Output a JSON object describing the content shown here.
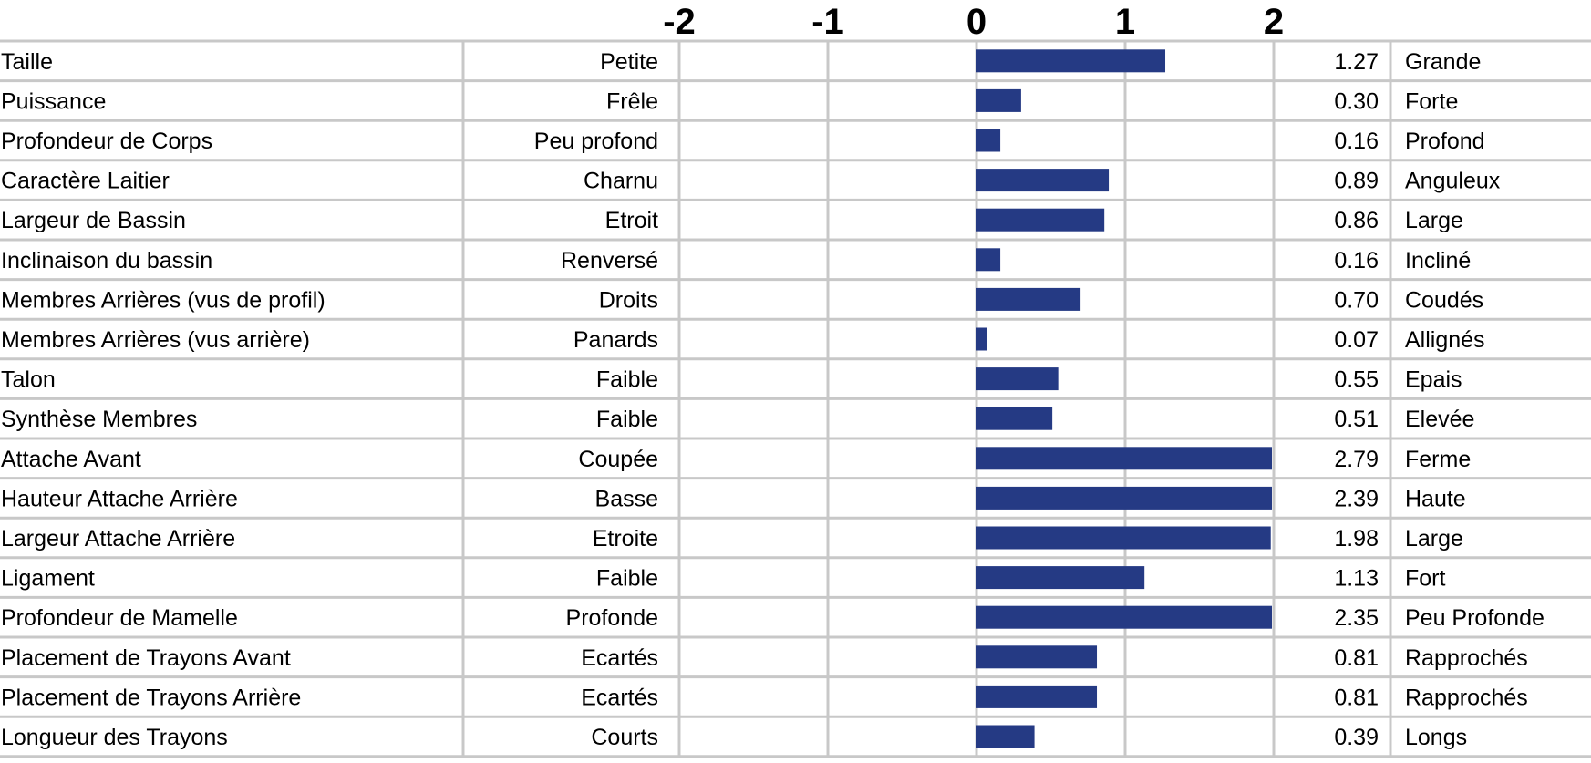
{
  "chart_data": {
    "type": "bar",
    "orientation": "horizontal",
    "xlim": [
      -2,
      2
    ],
    "ticks": [
      "-2",
      "-1",
      "0",
      "1",
      "2"
    ],
    "grid": true,
    "bar_color": "#253A84",
    "rows": [
      {
        "trait": "Taille",
        "low": "Petite",
        "value": 1.27,
        "value_label": "1.27",
        "high": "Grande"
      },
      {
        "trait": "Puissance",
        "low": "Frêle",
        "value": 0.3,
        "value_label": "0.30",
        "high": "Forte"
      },
      {
        "trait": "Profondeur de Corps",
        "low": "Peu profond",
        "value": 0.16,
        "value_label": "0.16",
        "high": "Profond"
      },
      {
        "trait": "Caractère Laitier",
        "low": "Charnu",
        "value": 0.89,
        "value_label": "0.89",
        "high": "Anguleux"
      },
      {
        "trait": "Largeur de Bassin",
        "low": "Etroit",
        "value": 0.86,
        "value_label": "0.86",
        "high": "Large"
      },
      {
        "trait": "Inclinaison du bassin",
        "low": "Renversé",
        "value": 0.16,
        "value_label": "0.16",
        "high": "Incliné"
      },
      {
        "trait": "Membres Arrières (vus de profil)",
        "low": "Droits",
        "value": 0.7,
        "value_label": "0.70",
        "high": "Coudés"
      },
      {
        "trait": "Membres Arrières (vus arrière)",
        "low": "Panards",
        "value": 0.07,
        "value_label": "0.07",
        "high": "Allignés"
      },
      {
        "trait": "Talon",
        "low": "Faible",
        "value": 0.55,
        "value_label": "0.55",
        "high": "Epais"
      },
      {
        "trait": "Synthèse Membres",
        "low": "Faible",
        "value": 0.51,
        "value_label": "0.51",
        "high": "Elevée"
      },
      {
        "trait": "Attache Avant",
        "low": "Coupée",
        "value": 2.79,
        "value_label": "2.79",
        "high": "Ferme"
      },
      {
        "trait": "Hauteur Attache Arrière",
        "low": "Basse",
        "value": 2.39,
        "value_label": "2.39",
        "high": "Haute"
      },
      {
        "trait": "Largeur Attache Arrière",
        "low": "Etroite",
        "value": 1.98,
        "value_label": "1.98",
        "high": "Large"
      },
      {
        "trait": "Ligament",
        "low": "Faible",
        "value": 1.13,
        "value_label": "1.13",
        "high": "Fort"
      },
      {
        "trait": "Profondeur de Mamelle",
        "low": "Profonde",
        "value": 2.35,
        "value_label": "2.35",
        "high": "Peu Profonde"
      },
      {
        "trait": "Placement de Trayons Avant",
        "low": "Ecartés",
        "value": 0.81,
        "value_label": "0.81",
        "high": "Rapprochés"
      },
      {
        "trait": "Placement de Trayons Arrière",
        "low": "Ecartés",
        "value": 0.81,
        "value_label": "0.81",
        "high": "Rapprochés"
      },
      {
        "trait": "Longueur des Trayons",
        "low": "Courts",
        "value": 0.39,
        "value_label": "0.39",
        "high": "Longs"
      }
    ]
  }
}
